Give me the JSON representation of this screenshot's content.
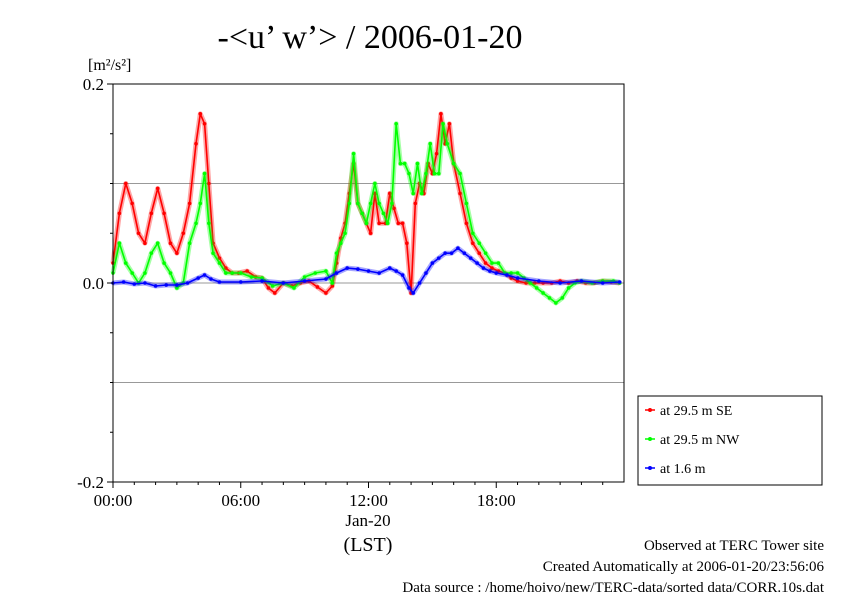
{
  "chart_data": {
    "type": "line",
    "title": "-<u’ w’> / 2006-01-20",
    "ylabel_unit": "[m²/s²]",
    "xlabel_date": "Jan-20",
    "xlabel": "(LST)",
    "xlim": [
      0,
      24
    ],
    "ylim": [
      -0.2,
      0.2
    ],
    "x_ticks": [
      0,
      6,
      12,
      18
    ],
    "x_tick_labels": [
      "00:00",
      "06:00",
      "12:00",
      "18:00"
    ],
    "y_ticks": [
      -0.2,
      0.0,
      0.2
    ],
    "y_tick_labels": [
      "-0.2",
      "0.0",
      "0.2"
    ],
    "grid": "horizontal",
    "legend_position": "right",
    "series": [
      {
        "name": "at 29.5 m SE",
        "color": "#ff0000",
        "x": [
          0,
          0.3,
          0.6,
          0.9,
          1.2,
          1.5,
          1.8,
          2.1,
          2.4,
          2.7,
          3.0,
          3.3,
          3.6,
          3.9,
          4.1,
          4.3,
          4.5,
          4.7,
          5.0,
          5.3,
          5.6,
          5.9,
          6.3,
          6.7,
          7.0,
          7.3,
          7.6,
          8.0,
          8.4,
          8.8,
          9.2,
          9.6,
          10.0,
          10.3,
          10.5,
          10.7,
          10.9,
          11.1,
          11.3,
          11.5,
          11.7,
          11.9,
          12.1,
          12.3,
          12.5,
          12.8,
          13.0,
          13.2,
          13.4,
          13.6,
          13.8,
          14.0,
          14.2,
          14.4,
          14.6,
          14.8,
          15.0,
          15.2,
          15.4,
          15.6,
          15.8,
          16.0,
          16.3,
          16.6,
          16.9,
          17.2,
          17.5,
          17.8,
          18.1,
          18.4,
          18.7,
          19.0,
          19.4,
          19.8,
          20.2,
          20.6,
          21.0,
          21.4,
          21.8,
          22.2,
          22.6,
          23.0,
          23.4,
          23.8
        ],
        "values": [
          0.02,
          0.07,
          0.1,
          0.08,
          0.05,
          0.04,
          0.07,
          0.095,
          0.07,
          0.04,
          0.03,
          0.05,
          0.08,
          0.14,
          0.17,
          0.16,
          0.1,
          0.04,
          0.025,
          0.015,
          0.01,
          0.01,
          0.012,
          0.006,
          0.005,
          -0.005,
          -0.01,
          0.0,
          -0.003,
          0.0,
          0.002,
          -0.004,
          -0.01,
          -0.003,
          0.02,
          0.045,
          0.06,
          0.09,
          0.12,
          0.08,
          0.07,
          0.06,
          0.05,
          0.09,
          0.06,
          0.06,
          0.09,
          0.075,
          0.06,
          0.06,
          0.04,
          -0.01,
          0.08,
          0.1,
          0.09,
          0.12,
          0.11,
          0.13,
          0.17,
          0.14,
          0.16,
          0.12,
          0.09,
          0.06,
          0.04,
          0.03,
          0.02,
          0.015,
          0.012,
          0.01,
          0.005,
          0.002,
          0.0,
          0.0,
          0.0,
          0.0,
          0.002,
          0.0,
          0.002,
          0.0,
          0.0,
          0.002,
          0.001,
          0.0
        ]
      },
      {
        "name": "at 29.5 m NW",
        "color": "#00ff00",
        "x": [
          0,
          0.3,
          0.6,
          0.9,
          1.2,
          1.5,
          1.8,
          2.1,
          2.4,
          2.7,
          3.0,
          3.3,
          3.6,
          3.9,
          4.1,
          4.3,
          4.5,
          4.7,
          5.0,
          5.3,
          5.6,
          6.0,
          6.5,
          7.0,
          7.5,
          8.0,
          8.5,
          9.0,
          9.5,
          10.0,
          10.3,
          10.5,
          10.7,
          10.9,
          11.1,
          11.3,
          11.5,
          11.7,
          11.9,
          12.1,
          12.3,
          12.5,
          12.7,
          12.9,
          13.1,
          13.3,
          13.5,
          13.7,
          13.9,
          14.1,
          14.3,
          14.5,
          14.7,
          14.9,
          15.1,
          15.3,
          15.5,
          15.7,
          16.0,
          16.3,
          16.6,
          16.9,
          17.2,
          17.5,
          17.8,
          18.1,
          18.4,
          18.7,
          19.0,
          19.3,
          19.6,
          19.9,
          20.2,
          20.5,
          20.8,
          21.1,
          21.4,
          21.7,
          22.0,
          22.5,
          23.0,
          23.5,
          23.8
        ],
        "values": [
          0.01,
          0.04,
          0.02,
          0.01,
          0.0,
          0.01,
          0.03,
          0.04,
          0.02,
          0.01,
          -0.005,
          0.0,
          0.04,
          0.06,
          0.08,
          0.11,
          0.06,
          0.03,
          0.02,
          0.01,
          0.01,
          0.01,
          0.006,
          0.005,
          -0.003,
          0.0,
          -0.005,
          0.006,
          0.01,
          0.012,
          0.0,
          0.03,
          0.04,
          0.05,
          0.08,
          0.13,
          0.08,
          0.07,
          0.06,
          0.08,
          0.1,
          0.08,
          0.07,
          0.06,
          0.08,
          0.16,
          0.12,
          0.12,
          0.11,
          0.09,
          0.12,
          0.09,
          0.11,
          0.14,
          0.11,
          0.11,
          0.16,
          0.14,
          0.12,
          0.11,
          0.08,
          0.05,
          0.04,
          0.03,
          0.02,
          0.02,
          0.01,
          0.01,
          0.01,
          0.005,
          0.0,
          -0.005,
          -0.01,
          -0.015,
          -0.02,
          -0.015,
          -0.005,
          0.0,
          0.002,
          0.0,
          0.002,
          0.002,
          0.0
        ]
      },
      {
        "name": "at 1.6 m",
        "color": "#0000ff",
        "x": [
          0,
          0.5,
          1.0,
          1.5,
          2.0,
          2.5,
          3.0,
          3.5,
          4.0,
          4.3,
          4.6,
          5.0,
          6.0,
          7.0,
          8.0,
          9.0,
          10.0,
          10.5,
          11.0,
          11.5,
          12.0,
          12.5,
          13.0,
          13.3,
          13.6,
          13.9,
          14.1,
          14.4,
          14.7,
          15.0,
          15.3,
          15.6,
          15.9,
          16.2,
          16.5,
          16.8,
          17.1,
          17.4,
          17.7,
          18.0,
          18.5,
          19.0,
          20.0,
          21.0,
          22.0,
          23.0,
          23.8
        ],
        "values": [
          0.0,
          0.001,
          -0.001,
          0.0,
          -0.003,
          -0.002,
          -0.002,
          0.0,
          0.005,
          0.008,
          0.004,
          0.001,
          0.001,
          0.002,
          0.0,
          0.002,
          0.004,
          0.01,
          0.015,
          0.014,
          0.012,
          0.01,
          0.015,
          0.012,
          0.008,
          -0.005,
          -0.01,
          0.0,
          0.01,
          0.02,
          0.025,
          0.03,
          0.03,
          0.035,
          0.03,
          0.025,
          0.02,
          0.015,
          0.012,
          0.01,
          0.008,
          0.005,
          0.002,
          0.0,
          0.002,
          0.0,
          0.001
        ]
      }
    ]
  },
  "footer": {
    "line1": "Observed at TERC Tower site",
    "line2": "Created Automatically at 2006-01-20/23:56:06",
    "line3": "Data source : /home/hoivo/new/TERC-data/sorted  data/CORR.10s.dat"
  }
}
